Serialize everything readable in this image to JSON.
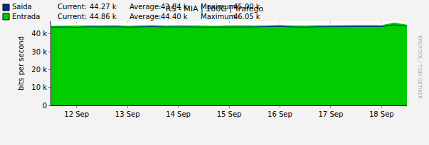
{
  "chart_data": {
    "type": "area",
    "title": "RS - MIA | 100G | Trafego",
    "y_label": "bits per second",
    "watermark": "RRDTOOL / TOBI OETIKER",
    "categories": [
      null,
      null,
      "12 Sep",
      null,
      null,
      null,
      "13 Sep",
      null,
      null,
      null,
      "14 Sep",
      null,
      null,
      null,
      "15 Sep",
      null,
      null,
      null,
      "16 Sep",
      null,
      null,
      null,
      "17 Sep",
      null,
      null,
      null,
      "18 Sep",
      null,
      null
    ],
    "series": [
      {
        "name": "Entrada",
        "type": "area",
        "color": "#00cc00",
        "values": [
          44200,
          44300,
          44100,
          44400,
          44300,
          44500,
          44200,
          44400,
          44600,
          44300,
          44500,
          44400,
          44300,
          44200,
          44400,
          44500,
          44300,
          44600,
          44700,
          44400,
          44300,
          44500,
          44600,
          44400,
          44500,
          44700,
          44600,
          46050,
          44860
        ],
        "stats": [
          [
            "Current:",
            "44.86 k"
          ],
          [
            "Average:",
            "44.40 k"
          ],
          [
            "Maximum:",
            "46.05 k"
          ]
        ]
      },
      {
        "name": "Saida",
        "type": "line",
        "color": "#002a97",
        "values": [
          43700,
          43800,
          43600,
          43900,
          43800,
          43900,
          43700,
          43800,
          44000,
          43800,
          43900,
          43800,
          43700,
          43700,
          43800,
          43900,
          43800,
          44000,
          44100,
          43800,
          43700,
          43900,
          44000,
          43800,
          43900,
          44100,
          44000,
          45000,
          44270
        ],
        "stats": [
          [
            "Current:",
            "44.27 k"
          ],
          [
            "Average:",
            "43.84 k"
          ],
          [
            "Maximum:",
            "45.00 k"
          ]
        ]
      }
    ],
    "ylim": [
      0,
      47000
    ],
    "yticks": [
      0,
      {
        "value": 10000,
        "label": "10 k"
      },
      {
        "value": 20000,
        "label": "20 k"
      },
      {
        "value": 30000,
        "label": "30 k"
      },
      {
        "value": 40000,
        "label": "40 k"
      }
    ],
    "grid": true
  }
}
